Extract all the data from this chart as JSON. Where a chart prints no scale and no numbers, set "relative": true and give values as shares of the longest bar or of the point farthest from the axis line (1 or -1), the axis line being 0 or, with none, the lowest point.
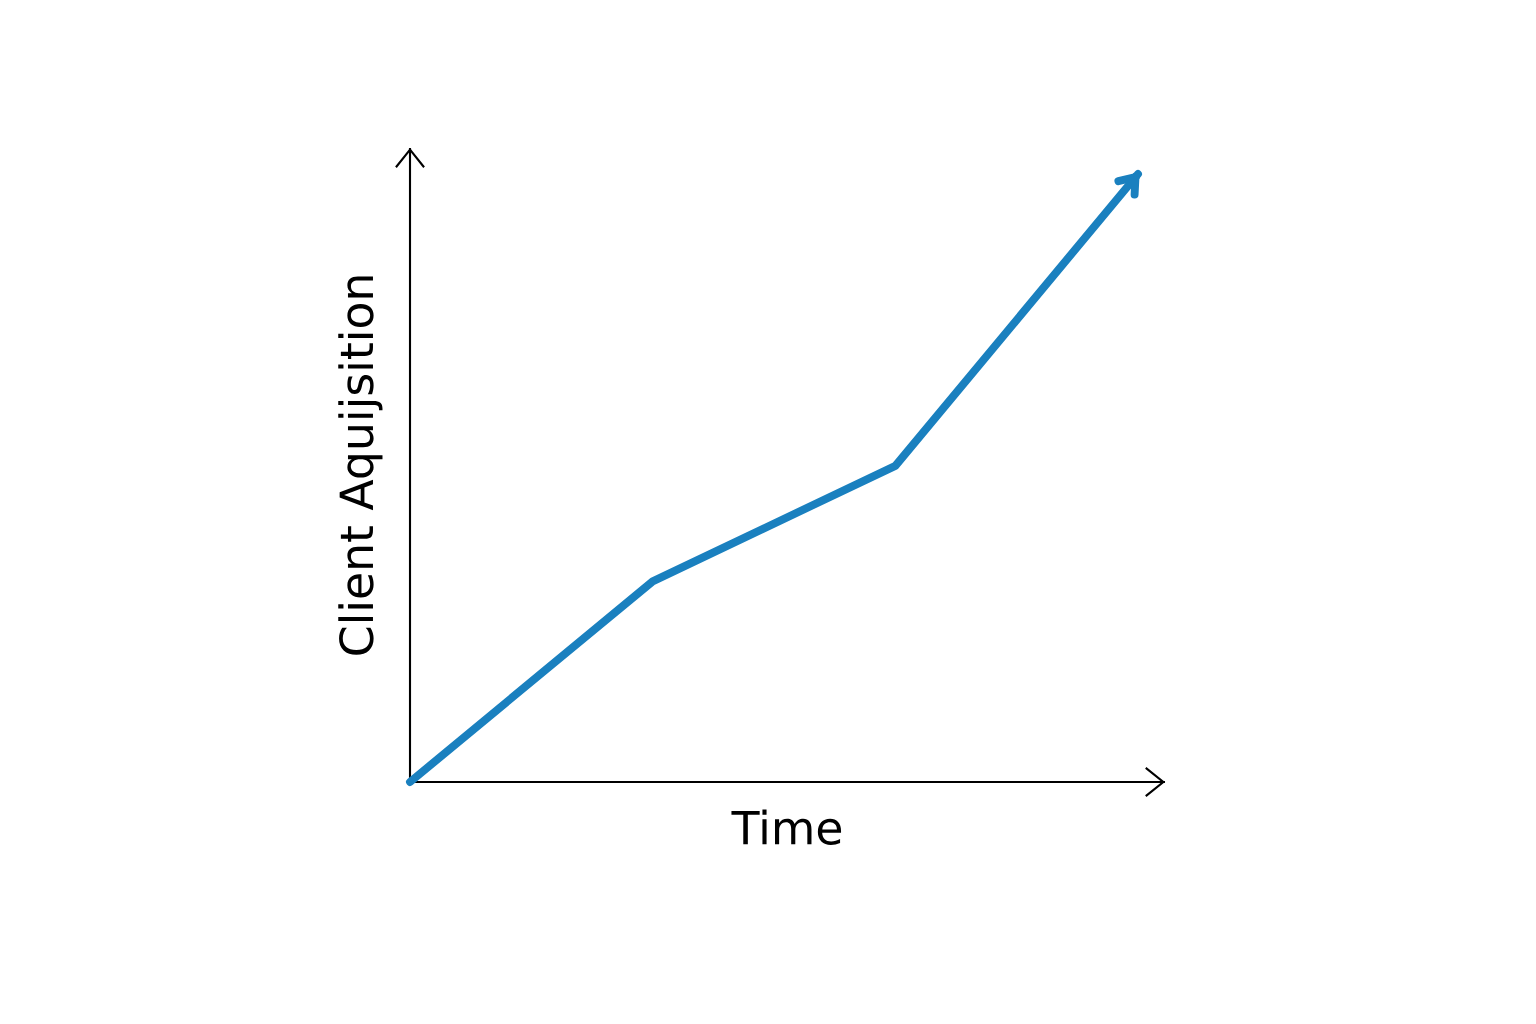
{
  "chart_data": {
    "type": "line",
    "xlabel": "Time",
    "ylabel": "Client Aquijsition",
    "relative": true,
    "categories": [
      null,
      null,
      null,
      null
    ],
    "series": [
      {
        "color": "#1a80bf",
        "values": [
          0,
          0.33,
          0.52,
          1
        ]
      }
    ]
  }
}
